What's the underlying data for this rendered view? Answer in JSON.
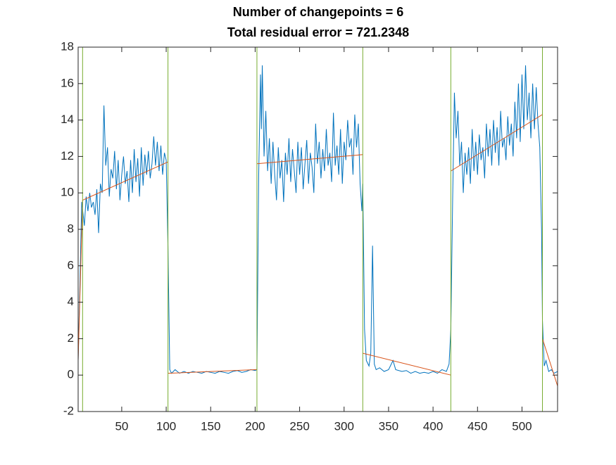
{
  "chart_data": {
    "type": "line",
    "title": [
      "Number of changepoints = 6",
      "Total residual error = 721.2348"
    ],
    "xlim": [
      1,
      540
    ],
    "ylim": [
      -2,
      18
    ],
    "xticks": [
      50,
      100,
      150,
      200,
      250,
      300,
      350,
      400,
      450,
      500
    ],
    "yticks": [
      -2,
      0,
      2,
      4,
      6,
      8,
      10,
      12,
      14,
      16,
      18
    ],
    "changepoints": [
      6,
      102,
      202,
      321,
      420,
      523
    ],
    "changepoint_color": "#77ac30",
    "series": [
      {
        "color": "#0072bd",
        "x": [
          1,
          3,
          5,
          8,
          10,
          12,
          14,
          16,
          18,
          20,
          22,
          24,
          26,
          28,
          30,
          32,
          34,
          36,
          38,
          40,
          42,
          44,
          46,
          48,
          50,
          52,
          54,
          56,
          58,
          60,
          62,
          64,
          66,
          68,
          70,
          72,
          74,
          76,
          78,
          80,
          82,
          84,
          86,
          88,
          90,
          92,
          94,
          96,
          98,
          100,
          102,
          104,
          106,
          110,
          115,
          120,
          125,
          130,
          135,
          140,
          145,
          150,
          155,
          160,
          165,
          170,
          175,
          180,
          185,
          190,
          195,
          200,
          202,
          204,
          206,
          207,
          208,
          210,
          212,
          214,
          216,
          218,
          220,
          222,
          224,
          226,
          228,
          230,
          232,
          234,
          236,
          238,
          240,
          242,
          244,
          246,
          248,
          250,
          252,
          254,
          256,
          258,
          260,
          262,
          264,
          266,
          268,
          270,
          272,
          274,
          276,
          278,
          280,
          282,
          284,
          286,
          288,
          290,
          292,
          294,
          296,
          298,
          300,
          302,
          304,
          306,
          308,
          310,
          312,
          314,
          316,
          318,
          320,
          321,
          323,
          325,
          328,
          330,
          332,
          334,
          336,
          340,
          345,
          350,
          355,
          358,
          365,
          370,
          375,
          380,
          385,
          390,
          395,
          400,
          405,
          410,
          415,
          418,
          420,
          422,
          424,
          426,
          428,
          430,
          432,
          434,
          436,
          438,
          440,
          442,
          444,
          446,
          448,
          450,
          452,
          454,
          456,
          458,
          460,
          462,
          464,
          466,
          468,
          470,
          472,
          474,
          476,
          478,
          480,
          482,
          484,
          486,
          488,
          490,
          492,
          494,
          496,
          498,
          500,
          502,
          504,
          506,
          508,
          510,
          512,
          514,
          516,
          518,
          520,
          522,
          523,
          525,
          527,
          530,
          533,
          536,
          540
        ],
        "values": [
          0.8,
          5,
          9.5,
          8.2,
          9.8,
          9.0,
          10.0,
          9.2,
          9.5,
          8.8,
          10.2,
          7.8,
          10.5,
          10.0,
          14.8,
          11.5,
          12.5,
          9.8,
          11.3,
          10.8,
          12.3,
          10.2,
          11.8,
          9.6,
          11.0,
          12.0,
          10.5,
          11.2,
          9.5,
          11.8,
          10.0,
          12.4,
          10.6,
          11.9,
          9.8,
          12.5,
          10.4,
          12.1,
          11.0,
          12.3,
          10.8,
          11.6,
          13.1,
          11.5,
          12.8,
          11.2,
          12.6,
          11.0,
          12.2,
          11.8,
          7.0,
          0.3,
          0.1,
          0.3,
          0.1,
          0.2,
          0.1,
          0.2,
          0.15,
          0.1,
          0.2,
          0.15,
          0.1,
          0.2,
          0.15,
          0.1,
          0.2,
          0.25,
          0.15,
          0.2,
          0.3,
          0.25,
          0.3,
          11.0,
          16.5,
          13.5,
          17.0,
          12.0,
          14.5,
          11.2,
          13.0,
          10.5,
          12.8,
          11.0,
          9.6,
          12.5,
          10.8,
          11.8,
          9.5,
          12.2,
          11.0,
          13.0,
          10.6,
          12.4,
          11.2,
          10.0,
          12.8,
          11.0,
          12.5,
          10.2,
          11.6,
          12.9,
          10.5,
          12.2,
          11.4,
          10.0,
          13.8,
          11.6,
          12.8,
          10.8,
          12.4,
          11.2,
          13.5,
          11.5,
          12.2,
          10.6,
          14.4,
          11.5,
          12.6,
          11.0,
          13.5,
          10.5,
          12.8,
          11.8,
          14.0,
          12.5,
          13.0,
          11.0,
          14.3,
          12.5,
          13.8,
          10.5,
          9.0,
          10.5,
          2.5,
          0.8,
          0.5,
          1.2,
          7.1,
          0.6,
          0.3,
          0.4,
          0.2,
          0.3,
          0.8,
          0.3,
          0.2,
          0.25,
          0.1,
          0.2,
          0.1,
          0.15,
          0.1,
          0.2,
          0.1,
          0.3,
          0.2,
          0.6,
          2.5,
          9.5,
          15.5,
          13.0,
          14.5,
          11.5,
          12.8,
          10.0,
          12.2,
          11.0,
          12.5,
          10.5,
          13.5,
          11.2,
          12.8,
          11.0,
          13.2,
          11.8,
          12.5,
          10.8,
          13.8,
          12.0,
          13.5,
          11.5,
          14.0,
          12.2,
          13.6,
          11.5,
          14.5,
          12.5,
          13.0,
          11.8,
          14.2,
          12.6,
          13.8,
          12.0,
          15.0,
          13.0,
          16.0,
          12.8,
          16.5,
          13.5,
          17.0,
          14.0,
          15.5,
          13.0,
          16.0,
          13.5,
          15.8,
          13.8,
          12.5,
          8.0,
          3.0,
          0.5,
          0.8,
          0.2,
          0.3,
          0.1,
          0.2
        ]
      },
      {
        "color": "#d95319",
        "x": [
          1,
          6,
          6,
          6,
          102,
          102,
          102,
          202,
          202,
          202,
          321,
          321,
          321,
          420,
          420,
          420,
          523,
          523,
          523,
          540
        ],
        "values": [
          0.8,
          9.6,
          null,
          9.6,
          11.7,
          null,
          0.1,
          0.3,
          null,
          11.6,
          12.1,
          null,
          1.2,
          0.0,
          null,
          11.2,
          14.3,
          null,
          2.0,
          -0.6
        ]
      }
    ]
  }
}
